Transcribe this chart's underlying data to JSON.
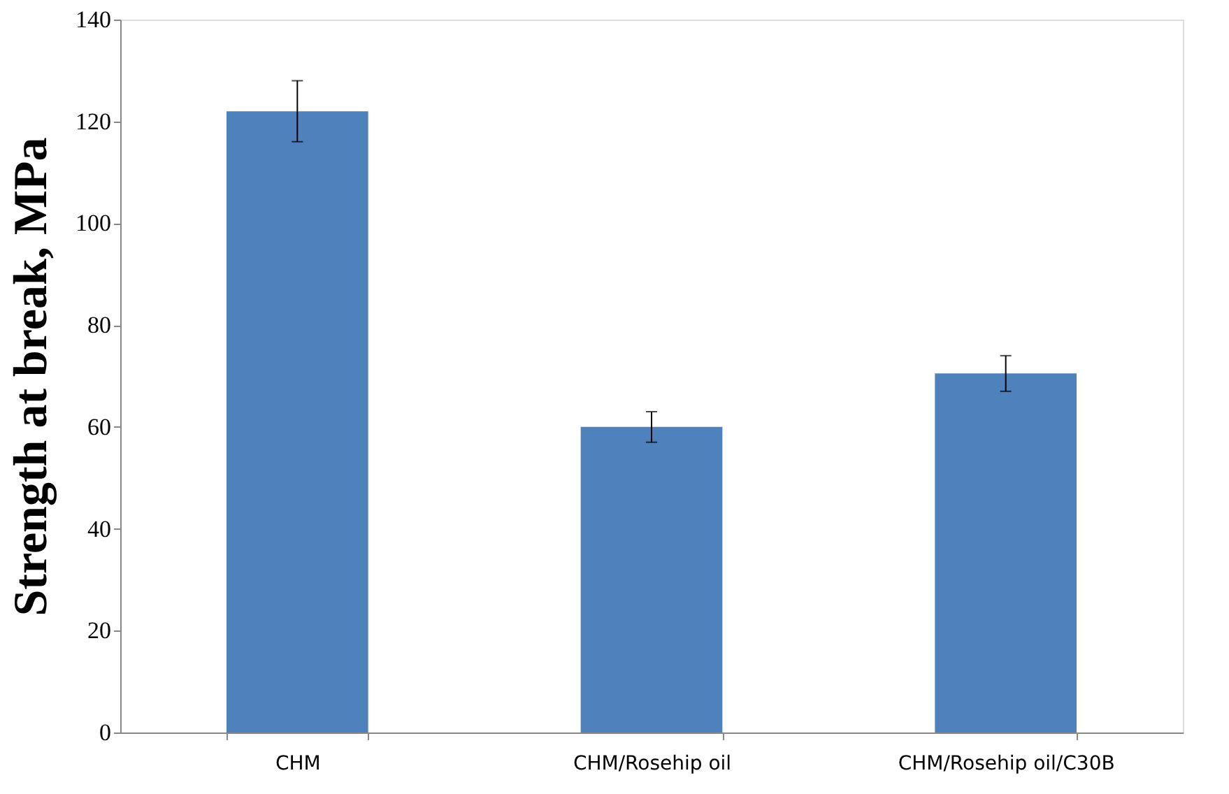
{
  "chart_data": {
    "type": "bar",
    "ylabel": "Strength at break, MPa",
    "categories": [
      "CHM",
      "CHM/Rosehip oil",
      "CHM/Rosehip oil/C30B"
    ],
    "values": [
      122,
      60,
      70.5
    ],
    "errors": [
      6,
      3,
      3.5
    ],
    "color": "#4f81bd",
    "ylim": [
      0,
      140
    ],
    "yticks": [
      0,
      20,
      40,
      60,
      80,
      100,
      120,
      140
    ],
    "grid": false
  }
}
